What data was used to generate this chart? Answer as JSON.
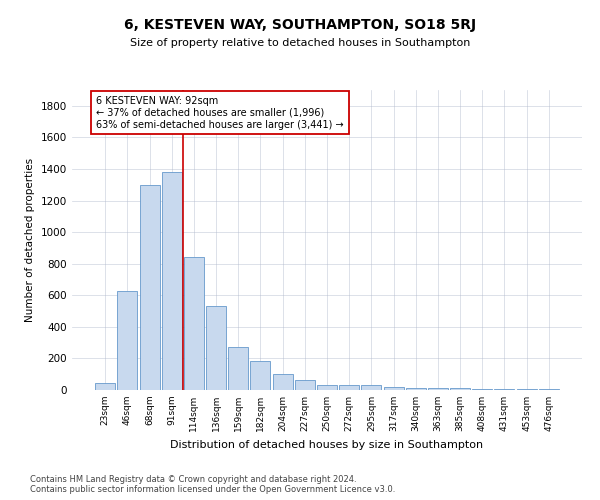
{
  "title": "6, KESTEVEN WAY, SOUTHAMPTON, SO18 5RJ",
  "subtitle": "Size of property relative to detached houses in Southampton",
  "xlabel": "Distribution of detached houses by size in Southampton",
  "ylabel": "Number of detached properties",
  "footer_line1": "Contains HM Land Registry data © Crown copyright and database right 2024.",
  "footer_line2": "Contains public sector information licensed under the Open Government Licence v3.0.",
  "annotation_title": "6 KESTEVEN WAY: 92sqm",
  "annotation_line1": "← 37% of detached houses are smaller (1,996)",
  "annotation_line2": "63% of semi-detached houses are larger (3,441) →",
  "bar_color": "#c8d9ee",
  "bar_edge_color": "#6699cc",
  "redline_color": "#cc0000",
  "annotation_box_edge": "#cc0000",
  "background_color": "#ffffff",
  "grid_color": "#b0b8cc",
  "categories": [
    "23sqm",
    "46sqm",
    "68sqm",
    "91sqm",
    "114sqm",
    "136sqm",
    "159sqm",
    "182sqm",
    "204sqm",
    "227sqm",
    "250sqm",
    "272sqm",
    "295sqm",
    "317sqm",
    "340sqm",
    "363sqm",
    "385sqm",
    "408sqm",
    "431sqm",
    "453sqm",
    "476sqm"
  ],
  "values": [
    45,
    630,
    1300,
    1380,
    840,
    530,
    270,
    185,
    100,
    62,
    30,
    30,
    30,
    20,
    15,
    10,
    10,
    5,
    5,
    5,
    5
  ],
  "ylim": [
    0,
    1900
  ],
  "yticks": [
    0,
    200,
    400,
    600,
    800,
    1000,
    1200,
    1400,
    1600,
    1800
  ],
  "red_line_x": 3.5
}
